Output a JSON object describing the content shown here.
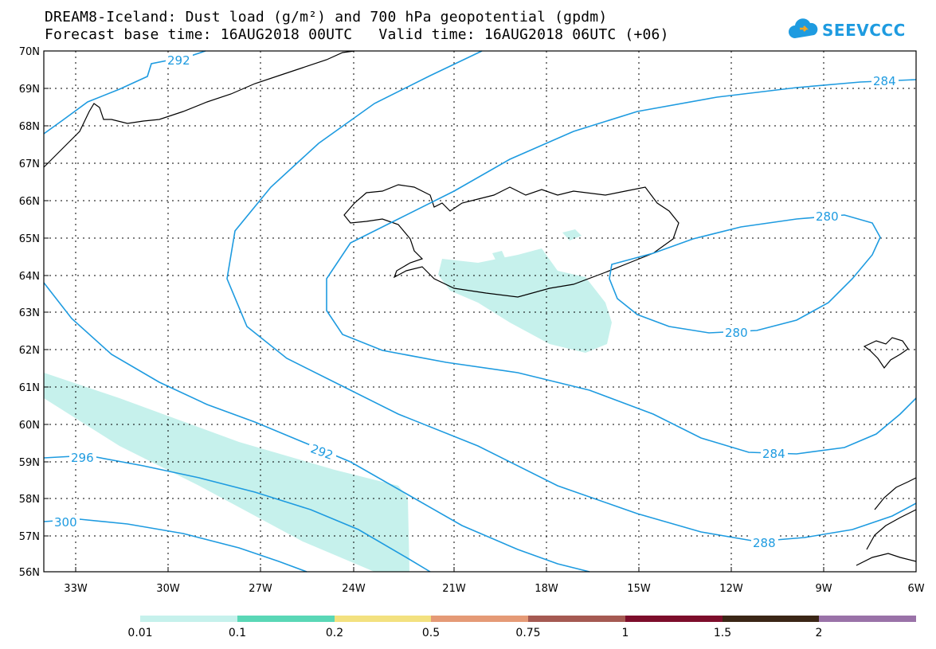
{
  "title_line1": "DREAM8-Iceland: Dust load (g/m²) and 700 hPa geopotential (gpdm)",
  "title_line2": "Forecast base time: 16AUG2018 00UTC   Valid time: 16AUG2018 06UTC (+06)",
  "logo_text": "SEEVCCC",
  "map": {
    "lat_labels": [
      "70N",
      "69N",
      "68N",
      "67N",
      "66N",
      "65N",
      "64N",
      "63N",
      "62N",
      "61N",
      "60N",
      "59N",
      "58N",
      "57N",
      "56N"
    ],
    "lon_labels": [
      "33W",
      "30W",
      "27W",
      "24W",
      "21W",
      "18W",
      "15W",
      "12W",
      "9W",
      "6W"
    ],
    "contour_labels": [
      "292",
      "284",
      "280",
      "280",
      "292",
      "296",
      "284",
      "300",
      "288"
    ],
    "contour_color": "#1e9be0",
    "dust_color": "#c6f1ec"
  },
  "colorbar": {
    "colors": [
      "#c6f1ec",
      "#5ad7b6",
      "#f3e17f",
      "#e59a76",
      "#a55a52",
      "#7d0d2b",
      "#3b2616",
      "#9a72a8"
    ],
    "labels": [
      "0.01",
      "0.1",
      "0.2",
      "0.5",
      "0.75",
      "1",
      "1.5",
      "2"
    ]
  }
}
